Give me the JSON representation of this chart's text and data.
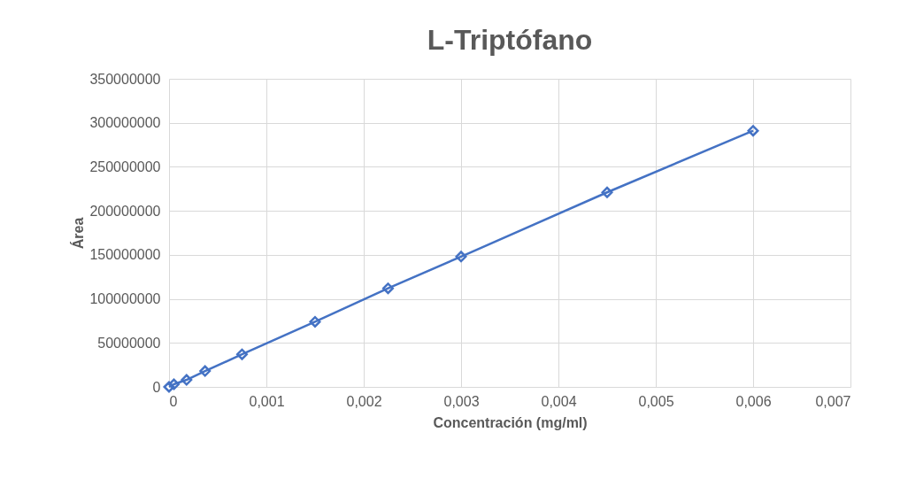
{
  "chart_data": {
    "type": "line",
    "title": "L-Triptófano",
    "xlabel": "Concentración (mg/ml)",
    "ylabel": "Área",
    "x": [
      0,
      5e-05,
      0.00018,
      0.00037,
      0.00075,
      0.0015,
      0.00225,
      0.003,
      0.0045,
      0.006
    ],
    "series": [
      {
        "color": "#4472c4",
        "values": [
          0,
          3000000,
          8000000,
          18000000,
          37000000,
          74000000,
          112000000,
          148000000,
          221000000,
          291000000
        ]
      }
    ],
    "xlim": [
      0,
      0.007
    ],
    "xticks": [
      0,
      {
        "value": 0.001,
        "label": "0,001"
      },
      {
        "value": 0.002,
        "label": "0,002"
      },
      {
        "value": 0.003,
        "label": "0,003"
      },
      {
        "value": 0.004,
        "label": "0,004"
      },
      {
        "value": 0.005,
        "label": "0,005"
      },
      {
        "value": 0.006,
        "label": "0,006"
      },
      {
        "value": 0.007,
        "label": "0,007"
      }
    ],
    "ylim": [
      0,
      350000000
    ],
    "yticks": [
      0,
      50000000,
      100000000,
      150000000,
      200000000,
      250000000,
      300000000,
      350000000
    ],
    "grid": true,
    "marker": "diamond",
    "line_style": "solid"
  }
}
